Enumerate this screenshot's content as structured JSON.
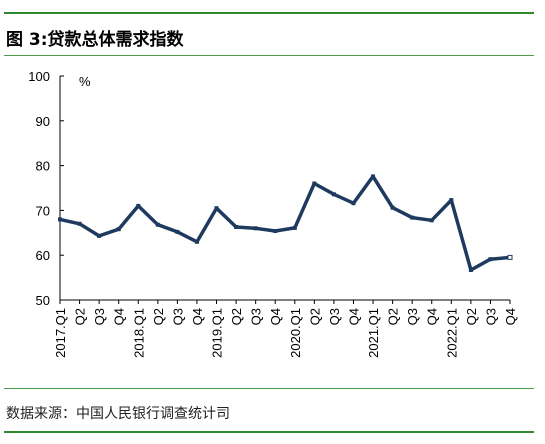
{
  "header": {
    "title": "图 3:贷款总体需求指数"
  },
  "footer": {
    "source": "数据来源：中国人民银行调查统计司"
  },
  "chart_data": {
    "type": "line",
    "title": "图 3:贷款总体需求指数",
    "xlabel": "",
    "ylabel": "%",
    "ylim": [
      50,
      100
    ],
    "yticks": [
      50,
      60,
      70,
      80,
      90,
      100
    ],
    "grid": false,
    "line_color": "#1f3a5f",
    "categories": [
      "2017.Q1",
      "Q2",
      "Q3",
      "Q4",
      "2018.Q1",
      "Q2",
      "Q3",
      "Q4",
      "2019.Q1",
      "Q2",
      "Q3",
      "Q4",
      "2020.Q1",
      "Q2",
      "Q3",
      "Q4",
      "2021.Q1",
      "Q2",
      "Q3",
      "Q4",
      "2022.Q1",
      "Q2",
      "Q3",
      "Q4"
    ],
    "series": [
      {
        "values": [
          68.0,
          67.0,
          64.3,
          65.8,
          71.0,
          66.8,
          65.2,
          63.0,
          70.5,
          66.3,
          66.0,
          65.4,
          66.1,
          76.0,
          73.6,
          71.6,
          77.6,
          70.6,
          68.4,
          67.8,
          72.3,
          56.7,
          59.1,
          59.5
        ]
      }
    ]
  }
}
